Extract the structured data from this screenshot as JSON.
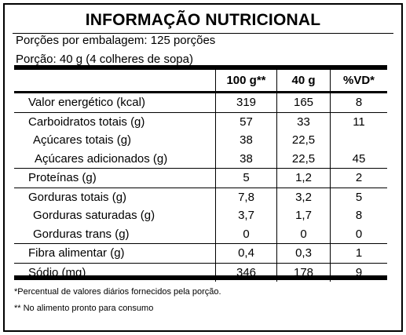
{
  "title": "INFORMAÇÃO NUTRICIONAL",
  "servings_per_package": "Porções por embalagem: 125 porções",
  "serving_size": "Porção: 40 g (4 colheres de sopa)",
  "table": {
    "headers": [
      "",
      "100 g**",
      "40 g",
      "%VD*"
    ],
    "rows": [
      {
        "name": "Valor energético (kcal)",
        "per100": "319",
        "per_portion": "165",
        "vd": "8"
      },
      {
        "name": "Carboidratos totais (g)",
        "per100": "57",
        "per_portion": "33",
        "vd": "11"
      },
      {
        "name": "Açúcares totais (g)",
        "per100": "38",
        "per_portion": "22,5",
        "vd": ""
      },
      {
        "name": "Açúcares adicionados (g)",
        "per100": "38",
        "per_portion": "22,5",
        "vd": "45"
      },
      {
        "name": "Proteínas (g)",
        "per100": "5",
        "per_portion": "1,2",
        "vd": "2"
      },
      {
        "name": "Gorduras totais (g)",
        "per100": "7,8",
        "per_portion": "3,2",
        "vd": "5"
      },
      {
        "name": "Gorduras saturadas (g)",
        "per100": "3,7",
        "per_portion": "1,7",
        "vd": "8"
      },
      {
        "name": "Gorduras trans (g)",
        "per100": "0",
        "per_portion": "0",
        "vd": "0"
      },
      {
        "name": "Fibra alimentar (g)",
        "per100": "0,4",
        "per_portion": "0,3",
        "vd": "1"
      },
      {
        "name": "Sódio (mg)",
        "per100": "346",
        "per_portion": "178",
        "vd": "9"
      }
    ]
  },
  "footnotes": [
    "*Percentual de valores diários fornecidos pela porção.",
    "** No alimento pronto para consumo"
  ]
}
